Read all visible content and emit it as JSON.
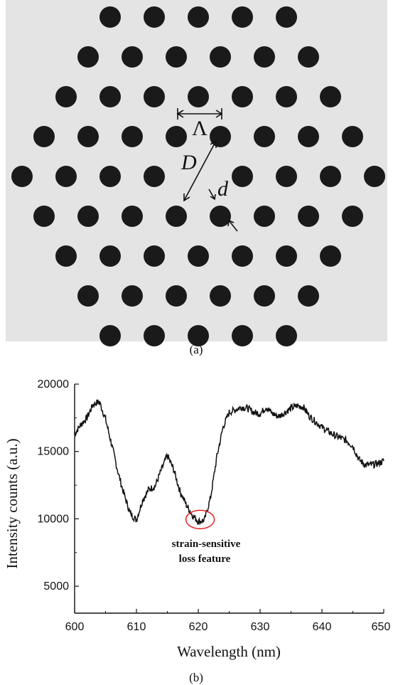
{
  "panel_a": {
    "caption": "(a)",
    "background": "#e4e4e4",
    "hole_color": "#1a1a1a",
    "hole_rows": [
      5,
      6,
      7,
      8,
      9,
      8,
      7,
      6,
      5
    ],
    "labels": {
      "pitch": "Λ",
      "diameter": "d",
      "core": "D"
    }
  },
  "panel_b": {
    "caption": "(b)",
    "annotation": {
      "line1": "strain-sensitive",
      "line2": "loss feature",
      "color": "#e02020"
    }
  },
  "chart_data": {
    "type": "line",
    "xlabel": "Wavelength (nm)",
    "ylabel": "Intensity counts (a.u.)",
    "xlim": [
      600,
      650
    ],
    "ylim": [
      3000,
      20000
    ],
    "xticks": [
      600,
      610,
      620,
      630,
      640,
      650
    ],
    "yticks": [
      5000,
      10000,
      15000,
      20000
    ],
    "grid": false,
    "series": [
      {
        "color": "#111111",
        "x": [
          600,
          601,
          602,
          603,
          604,
          605,
          606,
          607,
          608,
          609,
          610,
          611,
          612,
          613,
          614,
          615,
          616,
          617,
          618,
          619,
          620,
          621,
          622,
          623,
          624,
          625,
          626,
          627,
          628,
          629,
          630,
          631,
          632,
          633,
          634,
          635,
          636,
          637,
          638,
          639,
          640,
          641,
          642,
          643,
          644,
          645,
          646,
          647,
          648,
          649,
          650
        ],
        "y": [
          16300,
          17000,
          17500,
          18500,
          18700,
          17400,
          15500,
          13500,
          11800,
          10400,
          9900,
          11400,
          12200,
          12400,
          13600,
          14700,
          13700,
          12100,
          11100,
          10300,
          9800,
          9900,
          11600,
          14600,
          16800,
          17900,
          18100,
          18300,
          18200,
          17900,
          17800,
          18300,
          17800,
          17600,
          17900,
          18200,
          18400,
          18300,
          17600,
          17200,
          16800,
          16500,
          16200,
          16000,
          15800,
          15400,
          14400,
          14000,
          14000,
          14100,
          14300
        ]
      }
    ]
  }
}
